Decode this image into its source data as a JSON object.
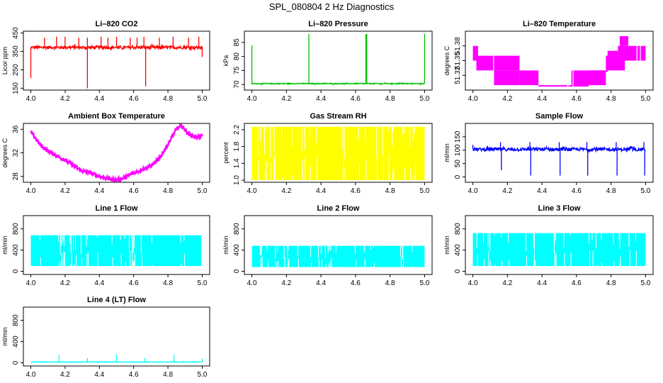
{
  "page": {
    "title": "SPL_080804  2 Hz Diagnostics"
  },
  "chart_data": [
    {
      "type": "line",
      "title": "Li–820 CO2",
      "xlabel": "",
      "ylabel": "Licor ppm",
      "xlim": [
        4.0,
        5.0
      ],
      "ylim": [
        140,
        460
      ],
      "yticks": [
        150,
        250,
        350,
        450
      ],
      "ytick_labels": [
        "150",
        "250",
        "350",
        "450"
      ],
      "color": "#ff0000",
      "baseline": 372,
      "noise": 8,
      "x": [
        4.0,
        5.0
      ],
      "spikes": [
        [
          4.0,
          205
        ],
        [
          4.08,
          425
        ],
        [
          4.15,
          430
        ],
        [
          4.2,
          430
        ],
        [
          4.28,
          425
        ],
        [
          4.33,
          150
        ],
        [
          4.33,
          425
        ],
        [
          4.41,
          430
        ],
        [
          4.45,
          425
        ],
        [
          4.5,
          430
        ],
        [
          4.58,
          425
        ],
        [
          4.62,
          425
        ],
        [
          4.66,
          430
        ],
        [
          4.67,
          160
        ],
        [
          4.75,
          425
        ],
        [
          4.83,
          430
        ],
        [
          4.92,
          425
        ],
        [
          4.98,
          430
        ],
        [
          5.0,
          320
        ]
      ]
    },
    {
      "type": "line",
      "title": "Li–820 Pressure",
      "xlabel": "",
      "ylabel": "kPa",
      "xlim": [
        4.0,
        5.0
      ],
      "ylim": [
        68,
        89
      ],
      "yticks": [
        70,
        75,
        80,
        85
      ],
      "ytick_labels": [
        "70",
        "75",
        "80",
        "85"
      ],
      "color": "#00c000",
      "baseline": 70.3,
      "noise": 0.15,
      "x": [
        4.0,
        5.0
      ],
      "spikes": [
        [
          4.0,
          84
        ],
        [
          4.33,
          88
        ],
        [
          4.66,
          88
        ],
        [
          4.665,
          88
        ],
        [
          5.0,
          88
        ]
      ]
    },
    {
      "type": "area",
      "title": "Li–820 Temperature",
      "xlabel": "",
      "ylabel": "degrees C",
      "xlim": [
        4.0,
        5.0
      ],
      "ylim": [
        51.29,
        51.41
      ],
      "yticks": [
        51.32,
        51.35,
        51.38
      ],
      "ytick_labels": [
        "51.32",
        "51.35",
        "51.38"
      ],
      "color": "#ff00ff",
      "bands": [
        [
          4.0,
          4.03,
          51.35,
          51.38
        ],
        [
          4.02,
          4.27,
          51.33,
          51.36
        ],
        [
          4.12,
          4.27,
          51.3,
          51.33
        ],
        [
          4.27,
          4.38,
          51.3,
          51.33
        ],
        [
          4.38,
          4.67,
          51.3,
          51.3
        ],
        [
          4.57,
          4.77,
          51.3,
          51.33
        ],
        [
          4.67,
          4.78,
          51.33,
          51.33
        ],
        [
          4.77,
          4.88,
          51.33,
          51.36
        ],
        [
          4.78,
          4.84,
          51.36,
          51.37
        ],
        [
          4.84,
          5.0,
          51.35,
          51.38
        ],
        [
          4.85,
          4.9,
          51.38,
          51.4
        ]
      ]
    },
    {
      "type": "line",
      "title": "Ambient Box Temperature",
      "xlabel": "",
      "ylabel": "degrees C",
      "xlim": [
        4.0,
        5.0
      ],
      "ylim": [
        27.0,
        37.0
      ],
      "yticks": [
        28,
        32,
        36
      ],
      "ytick_labels": [
        "28",
        "32",
        "36"
      ],
      "color": "#ff00ff",
      "noise": 0.35,
      "x": [
        4.0,
        4.05,
        4.1,
        4.15,
        4.2,
        4.25,
        4.3,
        4.35,
        4.4,
        4.45,
        4.5,
        4.55,
        4.6,
        4.65,
        4.7,
        4.75,
        4.8,
        4.85,
        4.88,
        4.92,
        4.96,
        5.0
      ],
      "values": [
        35.6,
        33.5,
        32.3,
        31.5,
        30.8,
        29.8,
        28.9,
        28.6,
        28.0,
        27.6,
        27.4,
        27.8,
        28.6,
        29.2,
        29.8,
        31.0,
        33.5,
        36.0,
        36.6,
        35.2,
        34.7,
        34.8
      ]
    },
    {
      "type": "line",
      "title": "Gas Stream RH",
      "xlabel": "",
      "ylabel": "percent",
      "xlim": [
        4.0,
        5.0
      ],
      "ylim": [
        0.95,
        2.35
      ],
      "yticks": [
        1.0,
        1.4,
        1.8,
        2.2
      ],
      "ytick_labels": [
        "1.0",
        "1.4",
        "1.8",
        "2.2"
      ],
      "color": "#ffff00",
      "range": [
        1.0,
        2.27
      ],
      "x": [
        4.0,
        5.0
      ]
    },
    {
      "type": "line",
      "title": "Sample Flow",
      "xlabel": "",
      "ylabel": "ml/min",
      "xlim": [
        4.0,
        5.0
      ],
      "ylim": [
        -20,
        200
      ],
      "yticks": [
        0,
        50,
        100,
        150
      ],
      "ytick_labels": [
        "0",
        "50",
        "100",
        "150"
      ],
      "color": "#0000ff",
      "baseline": 103,
      "noise": 6,
      "x": [
        4.0,
        5.0
      ],
      "spikes": [
        [
          4.0,
          120
        ],
        [
          4.16,
          130
        ],
        [
          4.165,
          25
        ],
        [
          4.33,
          130
        ],
        [
          4.335,
          5
        ],
        [
          4.5,
          130
        ],
        [
          4.505,
          5
        ],
        [
          4.66,
          130
        ],
        [
          4.665,
          5
        ],
        [
          4.83,
          130
        ],
        [
          4.835,
          5
        ],
        [
          4.99,
          130
        ],
        [
          4.995,
          5
        ]
      ]
    },
    {
      "type": "area",
      "title": "Line 1 Flow",
      "xlabel": "",
      "ylabel": "ml/min",
      "xlim": [
        4.0,
        5.0
      ],
      "ylim": [
        -60,
        1050
      ],
      "yticks": [
        0,
        400,
        800
      ],
      "ytick_labels": [
        "0",
        "400",
        "800"
      ],
      "color": "#00ffff",
      "range": [
        100,
        680
      ],
      "x": [
        4.0,
        4.995
      ]
    },
    {
      "type": "area",
      "title": "Line 2 Flow",
      "xlabel": "",
      "ylabel": "ml/min",
      "xlim": [
        4.0,
        5.0
      ],
      "ylim": [
        -60,
        1050
      ],
      "yticks": [
        0,
        400,
        800
      ],
      "ytick_labels": [
        "0",
        "400",
        "800"
      ],
      "color": "#00ffff",
      "range": [
        80,
        480
      ],
      "x": [
        4.0,
        5.0
      ]
    },
    {
      "type": "area",
      "title": "Line 3 Flow",
      "xlabel": "",
      "ylabel": "ml/min",
      "xlim": [
        4.0,
        5.0
      ],
      "ylim": [
        -60,
        1050
      ],
      "yticks": [
        0,
        400,
        800
      ],
      "ytick_labels": [
        "0",
        "400",
        "800"
      ],
      "color": "#00ffff",
      "range": [
        100,
        720
      ],
      "x": [
        4.0,
        5.0
      ]
    },
    {
      "type": "line",
      "title": "Line 4 (LT) Flow",
      "xlabel": "",
      "ylabel": "ml/min",
      "xlim": [
        4.0,
        5.0
      ],
      "ylim": [
        -60,
        1050
      ],
      "yticks": [
        0,
        400,
        800
      ],
      "ytick_labels": [
        "0",
        "400",
        "800"
      ],
      "color": "#00ffff",
      "baseline": 15,
      "noise": 4,
      "x": [
        4.0,
        5.0
      ],
      "spikes": [
        [
          4.165,
          150
        ],
        [
          4.33,
          90
        ],
        [
          4.5,
          150
        ],
        [
          4.665,
          90
        ],
        [
          4.835,
          150
        ],
        [
          5.0,
          80
        ]
      ]
    }
  ],
  "x_ticks": [
    4.0,
    4.2,
    4.4,
    4.6,
    4.8,
    5.0
  ],
  "x_tick_labels": [
    "4.0",
    "4.2",
    "4.4",
    "4.6",
    "4.8",
    "5.0"
  ]
}
